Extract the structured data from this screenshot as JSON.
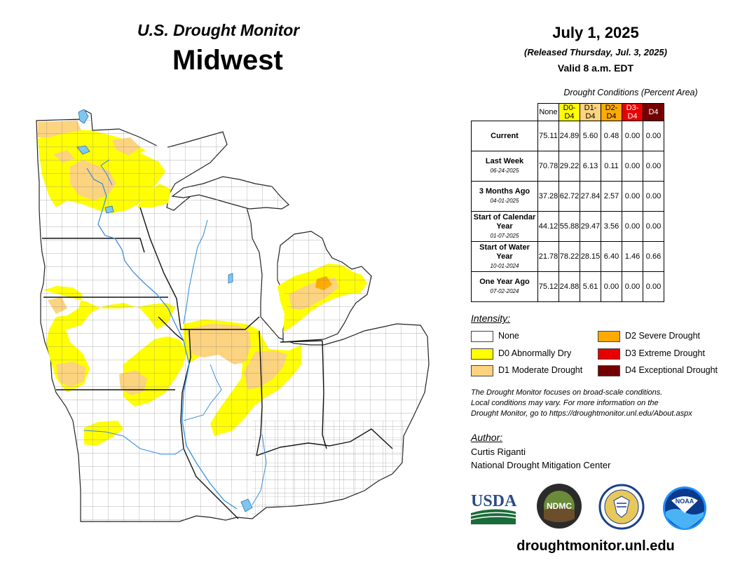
{
  "header": {
    "title": "U.S. Drought Monitor",
    "region": "Midwest",
    "date": "July 1, 2025",
    "released": "(Released Thursday, Jul. 3, 2025)",
    "valid": "Valid 8 a.m. EDT"
  },
  "conditions": {
    "title": "Drought Conditions (Percent Area)",
    "columns": [
      {
        "label": "None",
        "color": "#ffffff",
        "text_color": "#000000"
      },
      {
        "label": "D0-D4",
        "color": "#ffff00",
        "text_color": "#000000"
      },
      {
        "label": "D1-D4",
        "color": "#fcd37f",
        "text_color": "#000000"
      },
      {
        "label": "D2-D4",
        "color": "#ffaa00",
        "text_color": "#000000"
      },
      {
        "label": "D3-D4",
        "color": "#e60000",
        "text_color": "#ffffff"
      },
      {
        "label": "D4",
        "color": "#730000",
        "text_color": "#ffffff"
      }
    ],
    "rows": [
      {
        "label": "Current",
        "sub": "",
        "values": [
          "75.11",
          "24.89",
          "5.60",
          "0.48",
          "0.00",
          "0.00"
        ]
      },
      {
        "label": "Last Week",
        "sub": "06-24-2025",
        "values": [
          "70.78",
          "29.22",
          "6.13",
          "0.11",
          "0.00",
          "0.00"
        ]
      },
      {
        "label": "3 Months Ago",
        "sub": "04-01-2025",
        "values": [
          "37.28",
          "62.72",
          "27.84",
          "2.57",
          "0.00",
          "0.00"
        ]
      },
      {
        "label": "Start of Calendar Year",
        "sub": "01-07-2025",
        "values": [
          "44.12",
          "55.88",
          "29.47",
          "3.56",
          "0.00",
          "0.00"
        ]
      },
      {
        "label": "Start of Water Year",
        "sub": "10-01-2024",
        "values": [
          "21.78",
          "78.22",
          "28.15",
          "6.40",
          "1.46",
          "0.66"
        ]
      },
      {
        "label": "One Year Ago",
        "sub": "07-02-2024",
        "values": [
          "75.12",
          "24.88",
          "5.61",
          "0.00",
          "0.00",
          "0.00"
        ]
      }
    ]
  },
  "legend": {
    "title": "Intensity:",
    "items": [
      {
        "label": "None",
        "color": "#ffffff"
      },
      {
        "label": "D0 Abnormally Dry",
        "color": "#ffff00"
      },
      {
        "label": "D1 Moderate Drought",
        "color": "#fcd37f"
      },
      {
        "label": "D2 Severe Drought",
        "color": "#ffaa00"
      },
      {
        "label": "D3 Extreme Drought",
        "color": "#e60000"
      },
      {
        "label": "D4 Exceptional Drought",
        "color": "#730000"
      }
    ]
  },
  "disclaimer": {
    "line1": "The Drought Monitor focuses on broad-scale conditions.",
    "line2": "Local conditions may vary. For more information on the",
    "line3": "Drought Monitor, go to https://droughtmonitor.unl.edu/About.aspx"
  },
  "author": {
    "title": "Author:",
    "name": "Curtis Riganti",
    "org": "National Drought Mitigation Center"
  },
  "logos": {
    "usda": "USDA",
    "ndmc": "NDMC",
    "ndmc_ring": "NATIONAL DROUGHT MITIGATION CENTER",
    "noaa": "NOAA"
  },
  "url": "droughtmonitor.unl.edu",
  "map_colors": {
    "land": "#ffffff",
    "county_line": "#777777",
    "state_line": "#222222",
    "water": "#7fc7f0",
    "river": "#3c8fe0",
    "d0": "#ffff00",
    "d1": "#fcd37f",
    "d2": "#ffaa00"
  }
}
